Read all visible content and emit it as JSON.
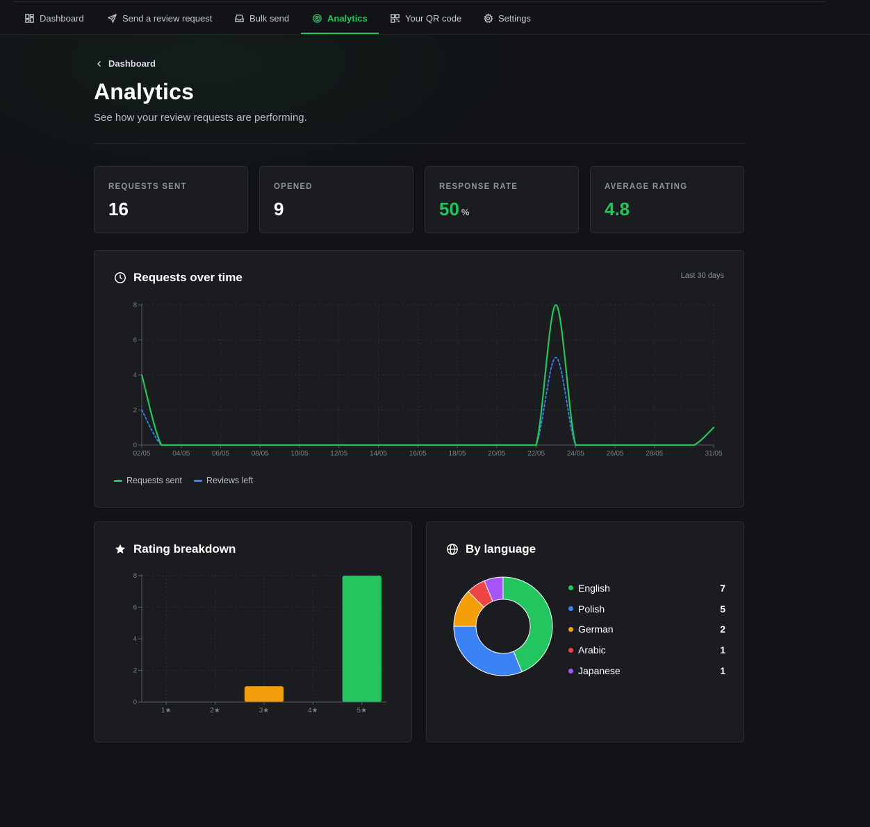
{
  "nav": {
    "items": [
      {
        "label": "Dashboard",
        "icon": "grid-icon"
      },
      {
        "label": "Send a review request",
        "icon": "send-icon"
      },
      {
        "label": "Bulk send",
        "icon": "inbox-icon"
      },
      {
        "label": "Analytics",
        "icon": "target-icon",
        "active": true
      },
      {
        "label": "Your QR code",
        "icon": "qr-icon"
      },
      {
        "label": "Settings",
        "icon": "gear-icon"
      }
    ]
  },
  "breadcrumb": {
    "label": "Dashboard"
  },
  "header": {
    "title": "Analytics",
    "subtitle": "See how your review requests are performing."
  },
  "stats": [
    {
      "label": "REQUESTS SENT",
      "value": "16",
      "unit": ""
    },
    {
      "label": "OPENED",
      "value": "9",
      "unit": ""
    },
    {
      "label": "RESPONSE RATE",
      "value": "50",
      "unit": "%"
    },
    {
      "label": "AVERAGE RATING",
      "value": "4.8",
      "unit": ""
    }
  ],
  "colors": {
    "accent": "#22c55e",
    "blue": "#3b82f6",
    "orange": "#f59e0b",
    "red": "#ef4444",
    "purple": "#a855f7",
    "background": "#111316",
    "card": "#1a1c1f"
  },
  "requests_card": {
    "title": "Requests over time",
    "range": "Last 30 days",
    "icon": "clock-icon"
  },
  "rating_card": {
    "title": "Rating breakdown",
    "icon": "star-icon"
  },
  "language_card": {
    "title": "By language",
    "icon": "globe-icon"
  },
  "chart_data": [
    {
      "type": "line",
      "title": "Requests over time",
      "x": [
        "02/05",
        "03/05",
        "04/05",
        "05/05",
        "06/05",
        "07/05",
        "08/05",
        "09/05",
        "10/05",
        "11/05",
        "12/05",
        "13/05",
        "14/05",
        "15/05",
        "16/05",
        "17/05",
        "18/05",
        "19/05",
        "20/05",
        "21/05",
        "22/05",
        "23/05",
        "24/05",
        "25/05",
        "26/05",
        "27/05",
        "28/05",
        "29/05",
        "30/05",
        "31/05"
      ],
      "tick_labels": [
        "02/05",
        "04/05",
        "06/05",
        "08/05",
        "10/05",
        "12/05",
        "14/05",
        "16/05",
        "18/05",
        "20/05",
        "22/05",
        "24/05",
        "26/05",
        "28/05",
        "31/05"
      ],
      "series": [
        {
          "name": "Requests sent",
          "color": "#22c55e",
          "dashed": false,
          "values": [
            4,
            0,
            0,
            0,
            0,
            0,
            0,
            0,
            0,
            0,
            0,
            0,
            0,
            0,
            0,
            0,
            0,
            0,
            0,
            0,
            0,
            8,
            0,
            0,
            0,
            0,
            0,
            0,
            0,
            1
          ]
        },
        {
          "name": "Reviews left",
          "color": "#3b82f6",
          "dashed": true,
          "values": [
            2,
            0,
            0,
            0,
            0,
            0,
            0,
            0,
            0,
            0,
            0,
            0,
            0,
            0,
            0,
            0,
            0,
            0,
            0,
            0,
            0,
            5,
            0,
            0,
            0,
            0,
            0,
            0,
            0,
            1
          ]
        }
      ],
      "ylim": [
        0,
        8
      ],
      "yticks": [
        0,
        2,
        4,
        6,
        8
      ],
      "grid": true,
      "legend": "bottom-left"
    },
    {
      "type": "bar",
      "title": "Rating breakdown",
      "categories": [
        "1★",
        "2★",
        "3★",
        "4★",
        "5★"
      ],
      "values": [
        0,
        0,
        1,
        0,
        8
      ],
      "colors": [
        "#22c55e",
        "#22c55e",
        "#f59e0b",
        "#22c55e",
        "#22c55e"
      ],
      "ylim": [
        0,
        8
      ],
      "yticks": [
        0,
        2,
        4,
        6,
        8
      ],
      "grid": true
    },
    {
      "type": "pie",
      "title": "By language",
      "donut": true,
      "categories": [
        "English",
        "Polish",
        "German",
        "Arabic",
        "Japanese"
      ],
      "values": [
        7,
        5,
        2,
        1,
        1
      ],
      "colors": [
        "#22c55e",
        "#3b82f6",
        "#f59e0b",
        "#ef4444",
        "#a855f7"
      ],
      "legend": "right"
    }
  ]
}
